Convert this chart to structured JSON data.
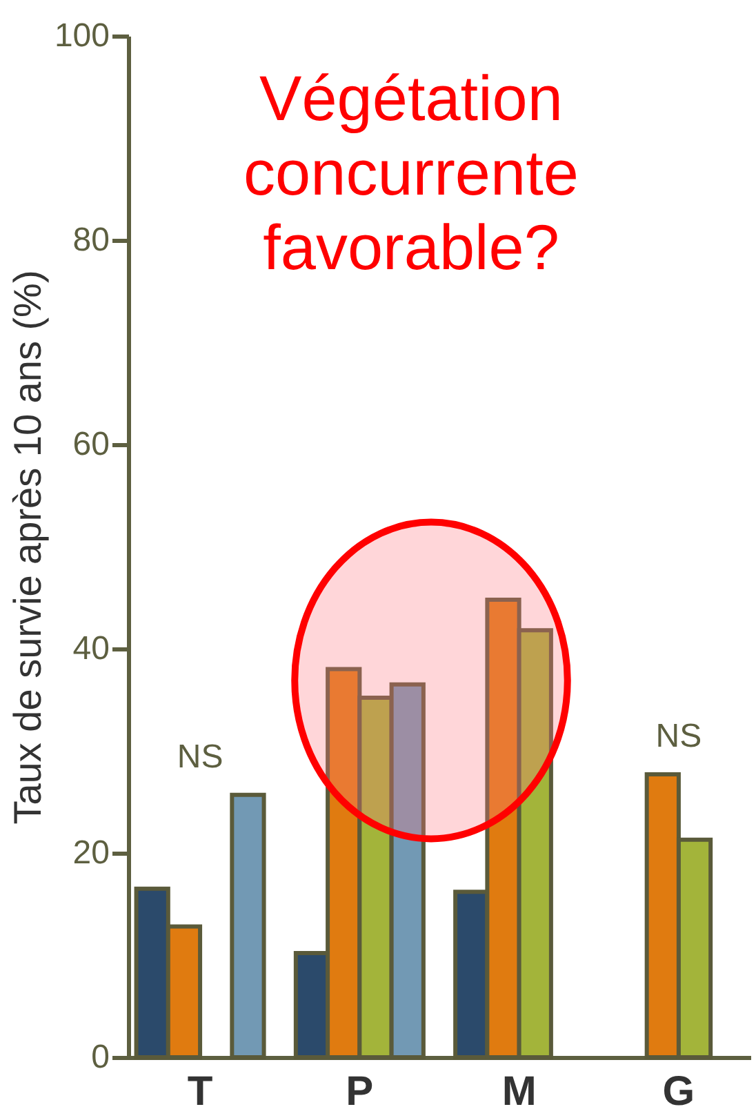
{
  "chart_data": {
    "type": "bar",
    "ylabel": "Taux de survie après 10 ans (%)",
    "categories": [
      "T",
      "P",
      "M",
      "G"
    ],
    "series": [
      {
        "color": "#2b4a6b",
        "values": [
          16.5,
          10.2,
          16.2,
          null
        ]
      },
      {
        "color": "#e07b10",
        "values": [
          12.8,
          38,
          44.8,
          27.7
        ]
      },
      {
        "color": "#a3b43a",
        "values": [
          null,
          35.2,
          41.8,
          21.3
        ]
      },
      {
        "color": "#7299b4",
        "values": [
          25.7,
          36.5,
          null,
          null
        ]
      }
    ],
    "ylim": [
      0,
      100
    ],
    "yticks": [
      0,
      20,
      40,
      60,
      80,
      100
    ],
    "grid": false,
    "legend": false,
    "annotations": [
      "Végétation\nconcurrente\nfavorable?",
      "NS",
      "NS"
    ]
  }
}
